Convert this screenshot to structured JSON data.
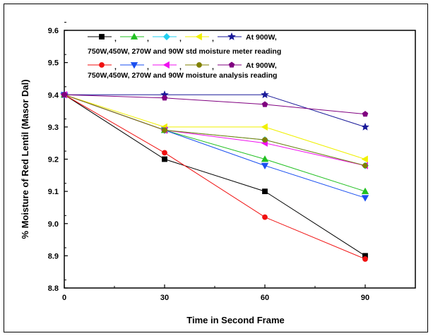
{
  "chart_data": {
    "type": "line",
    "xlabel": "Time in Second Frame",
    "ylabel": "% Moisture of Red Lentil (Masor Dal)",
    "xlim": [
      0,
      105
    ],
    "ylim": [
      8.8,
      9.6
    ],
    "x_ticks": [
      0,
      30,
      60,
      90
    ],
    "y_ticks": [
      8.8,
      8.9,
      9.0,
      9.1,
      9.2,
      9.3,
      9.4,
      9.5,
      9.6
    ],
    "x_tick_labels": [
      "0",
      "30",
      "60",
      "90"
    ],
    "y_tick_labels": [
      "8.8",
      "8.9",
      "9.0",
      "9.1",
      "9.2",
      "9.3",
      "9.4",
      "9.5",
      "9.6"
    ],
    "grid": false,
    "legend": {
      "placement": "top",
      "line1a": "At 900W,",
      "line1b": "750W,450W, 270W and 90W std moisture meter reading",
      "line2a": "At 900W,",
      "line2b": "750W,450W, 270W and 90W moisture analysis reading",
      "separator": ","
    },
    "series": [
      {
        "color": "#000000",
        "marker": "square",
        "x": [
          0,
          30,
          60,
          90
        ],
        "values": [
          9.4,
          9.2,
          9.1,
          8.9
        ]
      },
      {
        "color": "#22c022",
        "marker": "triangle-up",
        "x": [
          0,
          30,
          60,
          90
        ],
        "values": [
          9.4,
          9.29,
          9.2,
          9.1
        ]
      },
      {
        "color": "#22d0f0",
        "marker": "diamond",
        "x": [
          0,
          30,
          60,
          90
        ],
        "values": [
          9.4,
          9.29,
          9.26,
          9.18
        ]
      },
      {
        "color": "#f0f000",
        "marker": "triangle-left",
        "x": [
          0,
          30,
          60,
          90
        ],
        "values": [
          9.4,
          9.3,
          9.3,
          9.2
        ]
      },
      {
        "color": "#1a1a99",
        "marker": "star",
        "x": [
          0,
          30,
          60,
          90
        ],
        "values": [
          9.4,
          9.4,
          9.4,
          9.3
        ]
      },
      {
        "color": "#f01010",
        "marker": "circle",
        "x": [
          0,
          30,
          60,
          90
        ],
        "values": [
          9.4,
          9.22,
          9.02,
          8.89
        ]
      },
      {
        "color": "#1a4ff0",
        "marker": "triangle-down",
        "x": [
          0,
          30,
          60,
          90
        ],
        "values": [
          9.4,
          9.29,
          9.18,
          9.08
        ]
      },
      {
        "color": "#f010f0",
        "marker": "triangle-left",
        "x": [
          0,
          30,
          60,
          90
        ],
        "values": [
          9.4,
          9.29,
          9.25,
          9.18
        ]
      },
      {
        "color": "#808000",
        "marker": "circle",
        "x": [
          0,
          30,
          60,
          90
        ],
        "values": [
          9.4,
          9.29,
          9.26,
          9.18
        ]
      },
      {
        "color": "#800080",
        "marker": "pentagon",
        "x": [
          0,
          30,
          60,
          90
        ],
        "values": [
          9.4,
          9.39,
          9.37,
          9.34
        ]
      }
    ]
  }
}
